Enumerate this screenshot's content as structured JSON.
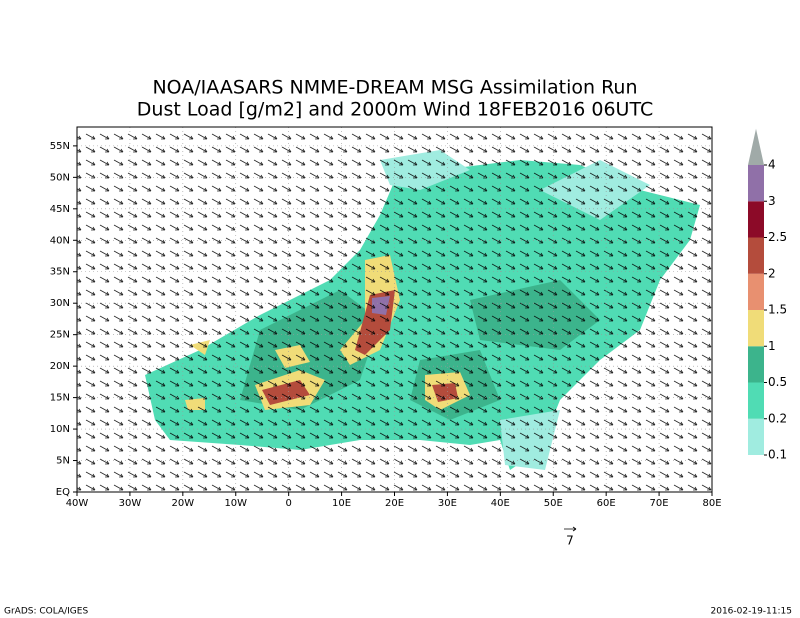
{
  "map": {
    "title": [
      "NOA/IAASARS NMME-DREAM MSG Assimilation Run",
      "Dust Load [g/m2] and 2000m Wind 18FEB2016 06UTC"
    ],
    "lonlim": [
      -40,
      80
    ],
    "latlim": [
      0,
      58
    ],
    "lonticks": [
      {
        "value": -40,
        "label": "40W"
      },
      {
        "value": -30,
        "label": "30W"
      },
      {
        "value": -20,
        "label": "20W"
      },
      {
        "value": -10,
        "label": "10W"
      },
      0,
      {
        "value": 10,
        "label": "10E"
      },
      {
        "value": 20,
        "label": "20E"
      },
      {
        "value": 30,
        "label": "30E"
      },
      {
        "value": 40,
        "label": "40E"
      },
      {
        "value": 50,
        "label": "50E"
      },
      {
        "value": 60,
        "label": "60E"
      },
      {
        "value": 70,
        "label": "70E"
      },
      {
        "value": 80,
        "label": "80E"
      }
    ],
    "latticks": [
      {
        "value": 0,
        "label": "EQ"
      },
      {
        "value": 5,
        "label": "5N"
      },
      {
        "value": 10,
        "label": "10N"
      },
      {
        "value": 15,
        "label": "15N"
      },
      {
        "value": 20,
        "label": "20N"
      },
      {
        "value": 25,
        "label": "25N"
      },
      {
        "value": 30,
        "label": "30N"
      },
      {
        "value": 35,
        "label": "35N"
      },
      {
        "value": 40,
        "label": "40N"
      },
      {
        "value": 45,
        "label": "45N"
      },
      {
        "value": 50,
        "label": "50N"
      },
      {
        "value": 55,
        "label": "55N"
      }
    ],
    "grid": true,
    "colorbar": {
      "levels": [
        0.1,
        0.2,
        0.5,
        1,
        1.5,
        2,
        2.5,
        3,
        4
      ],
      "colors": [
        "#a0ece0",
        "#50dcb4",
        "#3cb48c",
        "#f0dc78",
        "#e89070",
        "#b44c3c",
        "#8c0a28",
        "#9070a8",
        "#a0aaa8"
      ]
    },
    "reference_vector": 7,
    "footer_left": "GrADS: COLA/IGES",
    "footer_right": "2016-02-19-11:15"
  }
}
